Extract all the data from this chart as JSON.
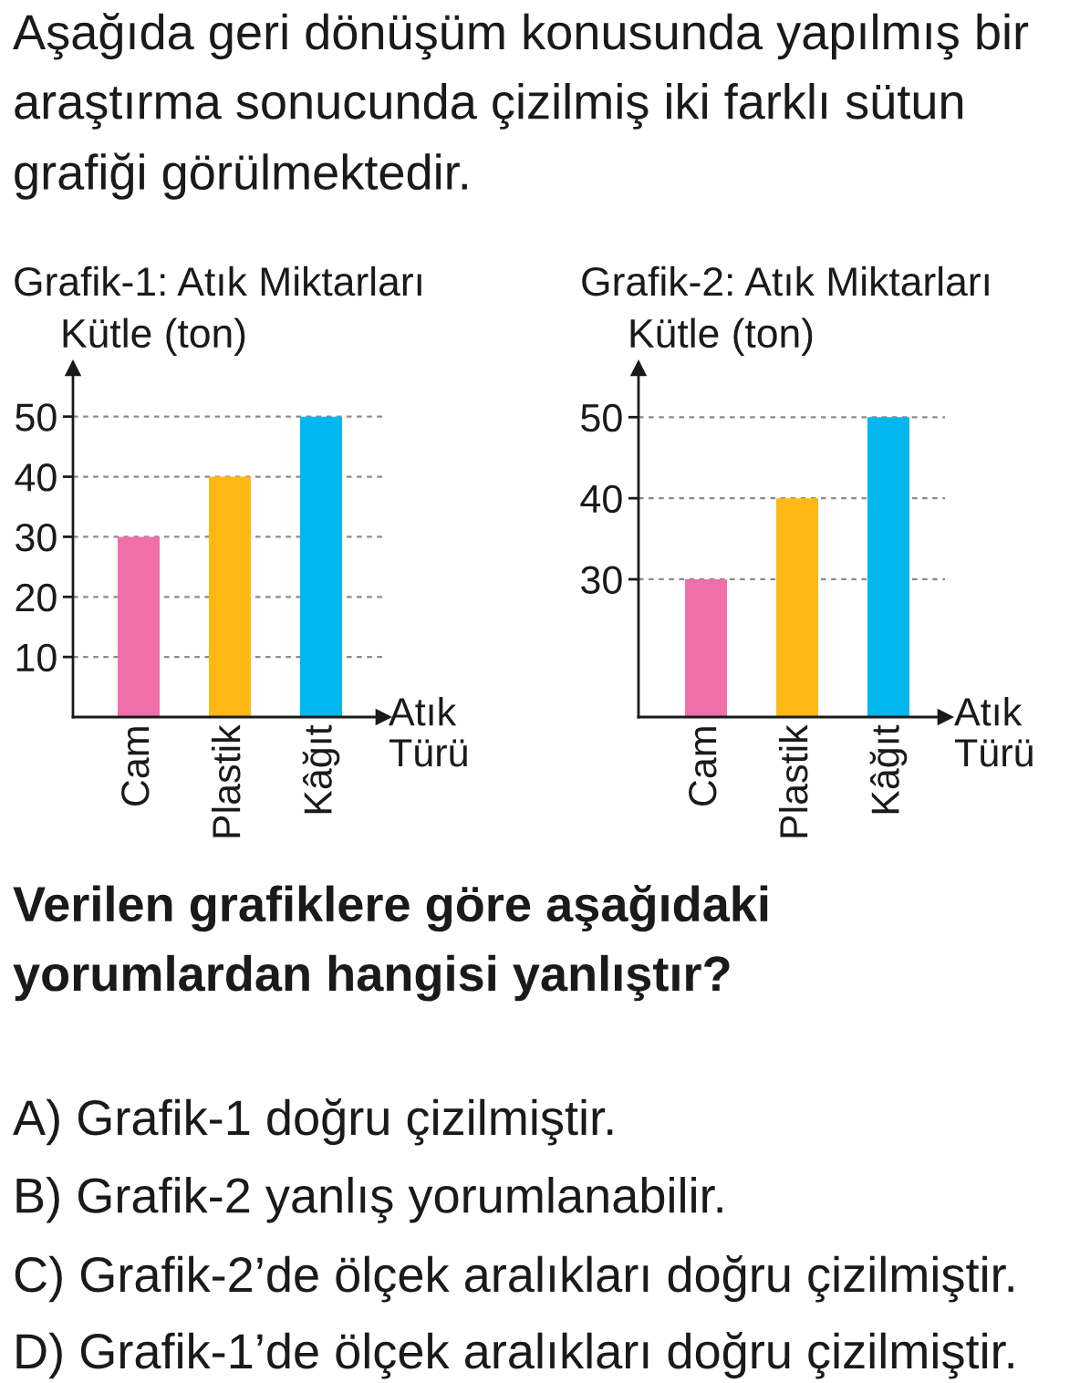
{
  "chart_data": [
    {
      "type": "bar",
      "title": "Grafik-1: Atık Miktarları",
      "ylabel": "Kütle (ton)",
      "xlabel": "Atık Türü",
      "categories": [
        "Cam",
        "Plastik",
        "Kâğıt"
      ],
      "values": [
        30,
        40,
        50
      ],
      "colors": [
        "#ef6fa8",
        "#fdb813",
        "#00b8ee"
      ],
      "ylim": [
        0,
        58
      ],
      "yticks": [
        10,
        20,
        30,
        40,
        50
      ],
      "grid": "y",
      "annotations": [
        "Aşağıda geri dönüşüm konusunda yapılmış bir araştırma sonucunda çizilmiş iki farklı sütun grafiği görülmektedir."
      ]
    },
    {
      "type": "bar",
      "title": "Grafik-2: Atık Miktarları",
      "ylabel": "Kütle (ton)",
      "xlabel": "Atık Türü",
      "categories": [
        "Cam",
        "Plastik",
        "Kâğıt"
      ],
      "values": [
        30,
        40,
        50
      ],
      "colors": [
        "#ef6fa8",
        "#fdb813",
        "#00b8ee"
      ],
      "ylim": [
        13,
        56
      ],
      "yticks": [
        30,
        40,
        50
      ],
      "grid": "y",
      "annotations": [
        "Verilen grafiklere göre aşağıdaki yorumlardan hangisi yanlıştır?",
        "A) Grafik-1 doğru çizilmiştir.",
        "B) Grafik-2 yanlış yorumlanabilir.",
        "C) Grafik-2’de ölçek aralıkları doğru çizilmiştir.",
        "D) Grafik-1’de ölçek aralıkları doğru çizilmiştir."
      ]
    }
  ]
}
